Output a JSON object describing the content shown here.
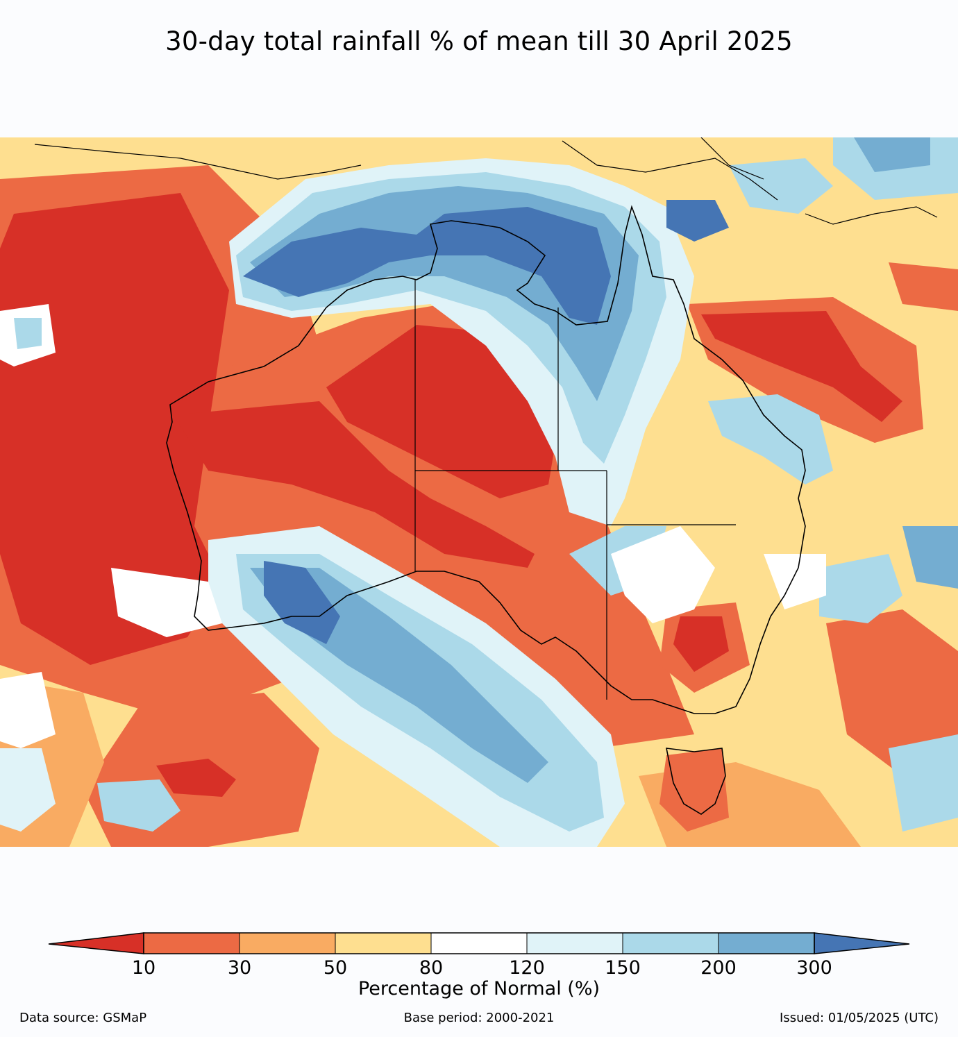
{
  "title": "30-day total rainfall % of mean till 30 April 2025",
  "legend": {
    "label": "Percentage of Normal (%)",
    "ticks": [
      "10",
      "30",
      "50",
      "80",
      "120",
      "150",
      "200",
      "300"
    ],
    "colors": [
      "#d73027",
      "#ec6a44",
      "#f9ab62",
      "#fedf90",
      "#ffffff",
      "#e0f3f8",
      "#abd9e9",
      "#74add1",
      "#4575b4"
    ]
  },
  "footer": {
    "source": "Data source: GSMaP",
    "base_period": "Base period: 2000-2021",
    "issued": "Issued: 01/05/2025 (UTC)"
  }
}
